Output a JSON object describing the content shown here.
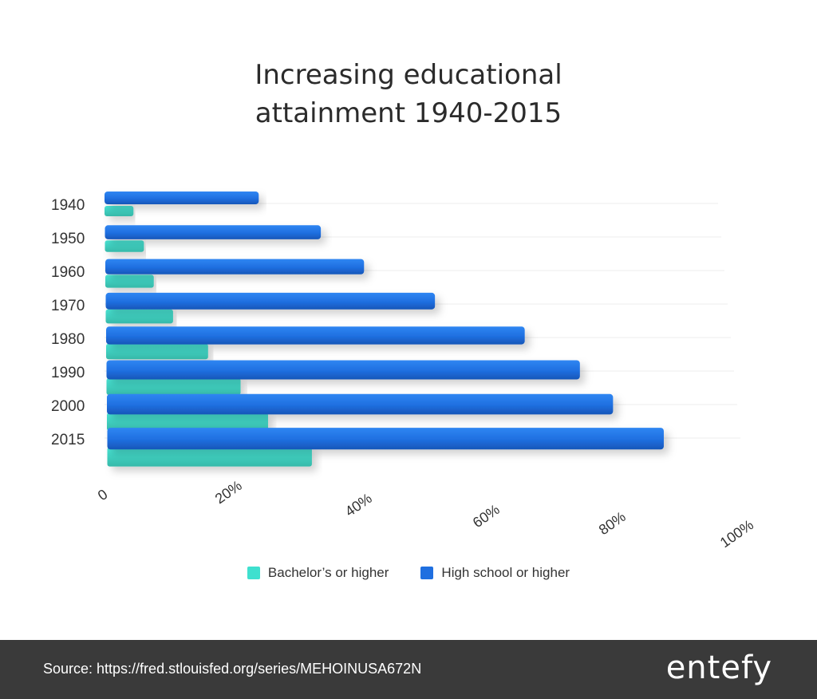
{
  "title_lines": [
    "Increasing educational",
    "attainment 1940-2015"
  ],
  "legend": [
    {
      "label": "Bachelor’s or higher",
      "color": "#3fe0cf"
    },
    {
      "label": "High school or higher",
      "color": "#1f6fe0"
    }
  ],
  "footer": {
    "source": "Source: https://fred.stlouisfed.org/series/MEHOINUSA672N",
    "logo": "entefy"
  },
  "chart_data": {
    "type": "bar",
    "orientation": "horizontal",
    "categories": [
      "1940",
      "1950",
      "1960",
      "1970",
      "1980",
      "1990",
      "2000",
      "2015"
    ],
    "series": [
      {
        "name": "High school or higher",
        "color": "#1f6fe0",
        "values": [
          24.5,
          34.3,
          41.1,
          52.3,
          66.5,
          75.2,
          80.4,
          88.4
        ]
      },
      {
        "name": "Bachelor’s or higher",
        "color": "#3fe0cf",
        "values": [
          4.6,
          6.2,
          7.7,
          10.7,
          16.2,
          21.3,
          25.6,
          32.5
        ]
      }
    ],
    "xticks": [
      "0",
      "20%",
      "40%",
      "60%",
      "80%",
      "100%"
    ],
    "xlim": [
      0,
      100
    ],
    "legend_position": "bottom",
    "grid": true
  }
}
